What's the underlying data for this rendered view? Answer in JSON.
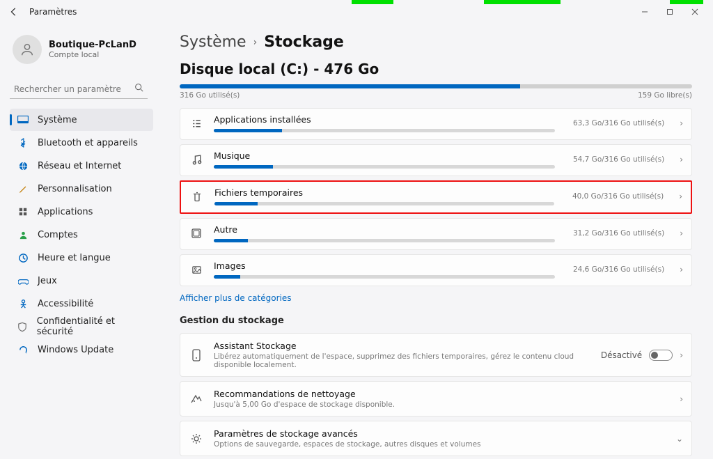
{
  "window": {
    "title": "Paramètres"
  },
  "account": {
    "name": "Boutique-PcLanD",
    "sub": "Compte local"
  },
  "search": {
    "placeholder": "Rechercher un paramètre"
  },
  "nav": [
    {
      "label": "Système",
      "icon_color": "#0067c0",
      "selected": true
    },
    {
      "label": "Bluetooth et appareils",
      "icon_color": "#0067c0",
      "selected": false
    },
    {
      "label": "Réseau et Internet",
      "icon_color": "#0067c0",
      "selected": false
    },
    {
      "label": "Personnalisation",
      "icon_color": "#c17a00",
      "selected": false
    },
    {
      "label": "Applications",
      "icon_color": "#555555",
      "selected": false
    },
    {
      "label": "Comptes",
      "icon_color": "#2aa04a",
      "selected": false
    },
    {
      "label": "Heure et langue",
      "icon_color": "#0067c0",
      "selected": false
    },
    {
      "label": "Jeux",
      "icon_color": "#0067c0",
      "selected": false
    },
    {
      "label": "Accessibilité",
      "icon_color": "#0067c0",
      "selected": false
    },
    {
      "label": "Confidentialité et sécurité",
      "icon_color": "#777777",
      "selected": false
    },
    {
      "label": "Windows Update",
      "icon_color": "#0067c0",
      "selected": false
    }
  ],
  "crumb": {
    "parent": "Système",
    "child": "Stockage"
  },
  "disk": {
    "title": "Disque local (C:) - 476 Go",
    "used_label": "316 Go utilisé(s)",
    "free_label": "159 Go libre(s)",
    "total_gb": 476,
    "used_gb": 316,
    "bar_fill_pct": 66.4,
    "bar_bg": "#d0d0d0",
    "bar_fill": "#0067c0"
  },
  "categories": [
    {
      "label": "Applications installées",
      "meta": "63,3 Go/316 Go utilisé(s)",
      "fill_pct": 20.0,
      "highlight": false
    },
    {
      "label": "Musique",
      "meta": "54,7 Go/316 Go utilisé(s)",
      "fill_pct": 17.3,
      "highlight": false
    },
    {
      "label": "Fichiers temporaires",
      "meta": "40,0 Go/316 Go utilisé(s)",
      "fill_pct": 12.7,
      "highlight": true
    },
    {
      "label": "Autre",
      "meta": "31,2 Go/316 Go utilisé(s)",
      "fill_pct": 9.9,
      "highlight": false
    },
    {
      "label": "Images",
      "meta": "24,6 Go/316 Go utilisé(s)",
      "fill_pct": 7.8,
      "highlight": false
    }
  ],
  "more_link": "Afficher plus de catégories",
  "mgmt_header": "Gestion du stockage",
  "mgmt": [
    {
      "label": "Assistant Stockage",
      "desc": "Libérez automatiquement de l'espace, supprimez des fichiers temporaires, gérez le contenu cloud disponible localement.",
      "right_text": "Désactivé",
      "toggle": true,
      "chev": ">"
    },
    {
      "label": "Recommandations de nettoyage",
      "desc": "Jusqu'à 5,00 Go d'espace de stockage disponible.",
      "right_text": "",
      "toggle": false,
      "chev": ">"
    },
    {
      "label": "Paramètres de stockage avancés",
      "desc": "Options de sauvegarde, espaces de stockage, autres disques et volumes",
      "right_text": "",
      "toggle": false,
      "chev": "v"
    }
  ],
  "colors": {
    "accent": "#0067c0",
    "highlight_border": "#e11",
    "bg": "#f5f5f7",
    "card_bg": "#fdfdfd",
    "card_border": "#e6e6e6",
    "text": "#111111",
    "muted": "#777777"
  }
}
